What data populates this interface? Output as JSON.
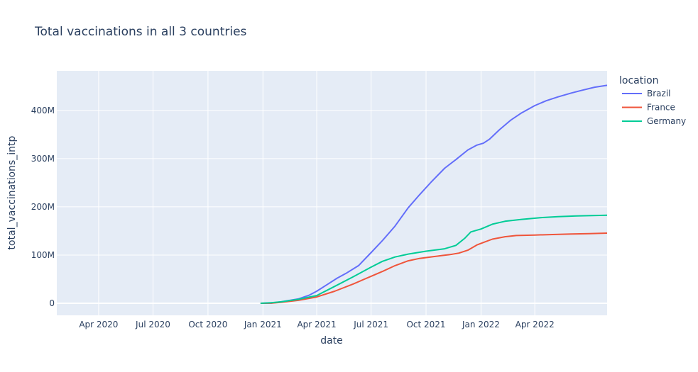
{
  "chart_data": {
    "type": "line",
    "title": "Total vaccinations in all 3 countries",
    "xlabel": "date",
    "ylabel": "total_vaccinations_intp",
    "xlim": [
      "2020-01-22",
      "2022-07-31"
    ],
    "ylim": [
      -25000000,
      482000000
    ],
    "x_ticks": [
      {
        "date": "2020-04-01",
        "label": "Apr 2020"
      },
      {
        "date": "2020-07-01",
        "label": "Jul 2020"
      },
      {
        "date": "2020-10-01",
        "label": "Oct 2020"
      },
      {
        "date": "2021-01-01",
        "label": "Jan 2021"
      },
      {
        "date": "2021-04-01",
        "label": "Apr 2021"
      },
      {
        "date": "2021-07-01",
        "label": "Jul 2021"
      },
      {
        "date": "2021-10-01",
        "label": "Oct 2021"
      },
      {
        "date": "2022-01-01",
        "label": "Jan 2022"
      },
      {
        "date": "2022-04-01",
        "label": "Apr 2022"
      }
    ],
    "y_ticks": [
      {
        "value": 0,
        "label": "0"
      },
      {
        "value": 100000000,
        "label": "100M"
      },
      {
        "value": 200000000,
        "label": "200M"
      },
      {
        "value": 300000000,
        "label": "300M"
      },
      {
        "value": 400000000,
        "label": "400M"
      }
    ],
    "grid": true,
    "legend": {
      "title": "location",
      "placement": "right"
    },
    "series": [
      {
        "name": "Brazil",
        "color": "#636efa",
        "points": [
          [
            "2020-12-28",
            0
          ],
          [
            "2021-01-15",
            300000
          ],
          [
            "2021-02-01",
            3000000
          ],
          [
            "2021-02-15",
            6000000
          ],
          [
            "2021-03-01",
            9000000
          ],
          [
            "2021-03-20",
            17000000
          ],
          [
            "2021-04-01",
            25000000
          ],
          [
            "2021-04-20",
            40000000
          ],
          [
            "2021-05-05",
            52000000
          ],
          [
            "2021-05-20",
            62000000
          ],
          [
            "2021-06-10",
            78000000
          ],
          [
            "2021-07-01",
            105000000
          ],
          [
            "2021-07-20",
            130000000
          ],
          [
            "2021-08-10",
            160000000
          ],
          [
            "2021-09-01",
            198000000
          ],
          [
            "2021-09-20",
            225000000
          ],
          [
            "2021-10-10",
            252000000
          ],
          [
            "2021-11-01",
            280000000
          ],
          [
            "2021-11-20",
            298000000
          ],
          [
            "2021-12-10",
            318000000
          ],
          [
            "2021-12-25",
            328000000
          ],
          [
            "2022-01-05",
            332000000
          ],
          [
            "2022-01-15",
            340000000
          ],
          [
            "2022-02-01",
            360000000
          ],
          [
            "2022-02-20",
            380000000
          ],
          [
            "2022-03-10",
            395000000
          ],
          [
            "2022-04-01",
            410000000
          ],
          [
            "2022-04-20",
            420000000
          ],
          [
            "2022-05-10",
            428000000
          ],
          [
            "2022-06-01",
            436000000
          ],
          [
            "2022-06-20",
            442000000
          ],
          [
            "2022-07-10",
            448000000
          ],
          [
            "2022-07-31",
            452000000
          ]
        ]
      },
      {
        "name": "France",
        "color": "#ef553b",
        "points": [
          [
            "2020-12-28",
            0
          ],
          [
            "2021-01-15",
            200000
          ],
          [
            "2021-02-01",
            2000000
          ],
          [
            "2021-03-01",
            6000000
          ],
          [
            "2021-04-01",
            13000000
          ],
          [
            "2021-05-01",
            25000000
          ],
          [
            "2021-06-01",
            40000000
          ],
          [
            "2021-07-01",
            56000000
          ],
          [
            "2021-07-20",
            66000000
          ],
          [
            "2021-08-10",
            78000000
          ],
          [
            "2021-09-01",
            88000000
          ],
          [
            "2021-09-20",
            93000000
          ],
          [
            "2021-10-15",
            97000000
          ],
          [
            "2021-11-10",
            101000000
          ],
          [
            "2021-11-25",
            104000000
          ],
          [
            "2021-12-10",
            110000000
          ],
          [
            "2021-12-25",
            121000000
          ],
          [
            "2022-01-05",
            126000000
          ],
          [
            "2022-01-20",
            133000000
          ],
          [
            "2022-02-10",
            138000000
          ],
          [
            "2022-03-01",
            140500000
          ],
          [
            "2022-04-01",
            141500000
          ],
          [
            "2022-05-01",
            142500000
          ],
          [
            "2022-06-01",
            143500000
          ],
          [
            "2022-07-01",
            144500000
          ],
          [
            "2022-07-31",
            145500000
          ]
        ]
      },
      {
        "name": "Germany",
        "color": "#00cc96",
        "points": [
          [
            "2020-12-28",
            0
          ],
          [
            "2021-01-15",
            1000000
          ],
          [
            "2021-02-01",
            3000000
          ],
          [
            "2021-03-01",
            8000000
          ],
          [
            "2021-04-01",
            16000000
          ],
          [
            "2021-05-01",
            35000000
          ],
          [
            "2021-06-01",
            55000000
          ],
          [
            "2021-07-01",
            75000000
          ],
          [
            "2021-07-20",
            87000000
          ],
          [
            "2021-08-10",
            96000000
          ],
          [
            "2021-09-01",
            102000000
          ],
          [
            "2021-10-01",
            108000000
          ],
          [
            "2021-11-01",
            113000000
          ],
          [
            "2021-11-20",
            120000000
          ],
          [
            "2021-12-05",
            135000000
          ],
          [
            "2021-12-15",
            148000000
          ],
          [
            "2022-01-01",
            154000000
          ],
          [
            "2022-01-20",
            164000000
          ],
          [
            "2022-02-10",
            170000000
          ],
          [
            "2022-03-10",
            174000000
          ],
          [
            "2022-04-10",
            177500000
          ],
          [
            "2022-05-10",
            179500000
          ],
          [
            "2022-06-10",
            181000000
          ],
          [
            "2022-07-31",
            182500000
          ]
        ]
      }
    ]
  }
}
